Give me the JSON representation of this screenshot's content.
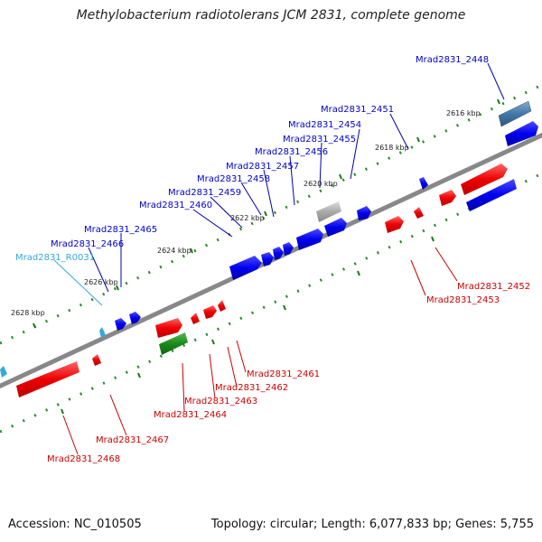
{
  "title": "Methylobacterium radiotolerans JCM 2831, complete genome",
  "footer": {
    "accession": "Accession: NC_010505",
    "summary": "Topology: circular; Length: 6,077,833 bp; Genes: 5,755"
  },
  "ticks": [
    "2616 kbp",
    "2618 kbp",
    "2620 kbp",
    "2622 kbp",
    "2624 kbp",
    "2626 kbp",
    "2628 kbp"
  ],
  "genes_top": [
    "Mrad2831_2448",
    "Mrad2831_2451",
    "Mrad2831_2454",
    "Mrad2831_2455",
    "Mrad2831_2456",
    "Mrad2831_2457",
    "Mrad2831_2458",
    "Mrad2831_2459",
    "Mrad2831_2460",
    "Mrad2831_2465",
    "Mrad2831_2466",
    "Mrad2831_R0031"
  ],
  "genes_bottom": [
    "Mrad2831_2452",
    "Mrad2831_2453",
    "Mrad2831_2461",
    "Mrad2831_2462",
    "Mrad2831_2463",
    "Mrad2831_2464",
    "Mrad2831_2467",
    "Mrad2831_2468"
  ],
  "colors": {
    "forward_gene": "#0000dd",
    "reverse_gene": "#ee0000",
    "rna_gene": "#3399ff",
    "rrna_gene": "#1a8a1a",
    "pseudo_gene": "#999999",
    "highlight_gene": "#4477aa",
    "backbone": "#777777",
    "tick_major": "#1a7a1a",
    "tick_minor": "#33aa33",
    "top_label": "#0000cc",
    "bottom_label": "#cc0000",
    "rna_label": "#33aadd"
  }
}
